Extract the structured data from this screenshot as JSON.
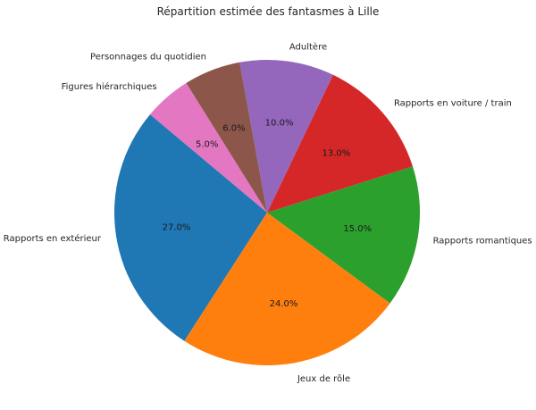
{
  "chart_data": {
    "type": "pie",
    "title": "Répartition estimée des fantasmes à Lille",
    "start_angle": 140,
    "counterclock": true,
    "autopct_format": "%.1f%%",
    "categories": [
      "Rapports en extérieur",
      "Jeux de rôle",
      "Rapports romantiques",
      "Rapports en voiture / train",
      "Adultère",
      "Personnages du quotidien",
      "Figures hiérarchiques"
    ],
    "values": [
      27,
      24,
      15,
      13,
      10,
      6,
      5
    ],
    "percent_labels": [
      "27.0%",
      "24.0%",
      "15.0%",
      "13.0%",
      "10.0%",
      "6.0%",
      "5.0%"
    ],
    "colors": [
      "#1f77b4",
      "#ff7f0e",
      "#2ca02c",
      "#d62728",
      "#9467bd",
      "#8c564b",
      "#e377c2"
    ],
    "legend": null
  }
}
